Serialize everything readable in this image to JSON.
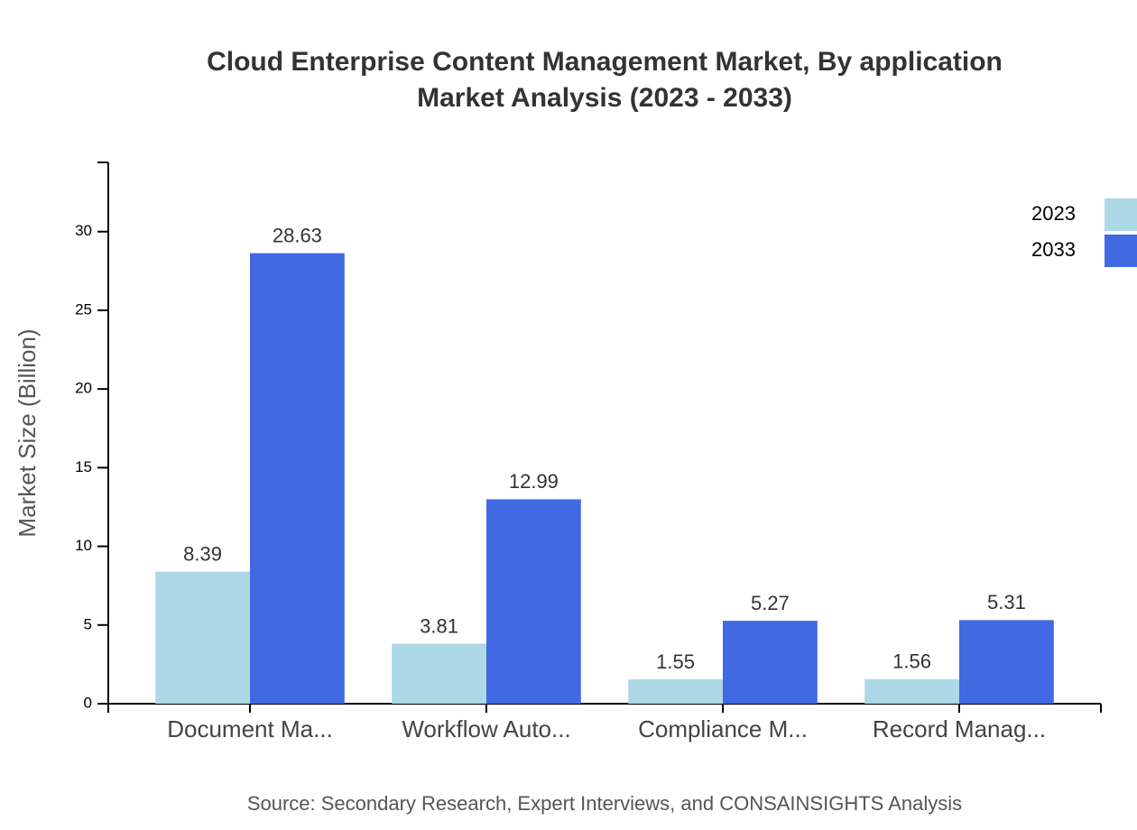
{
  "chart_data": {
    "type": "bar",
    "title": "Cloud Enterprise Content Management Market, By application",
    "subtitle": "Market Analysis (2023 - 2033)",
    "y_label": "Market Size (Billion)",
    "source": "Source: Secondary Research, Expert Interviews, and CONSAINSIGHTS Analysis",
    "categories": [
      "Document Ma...",
      "Workflow Auto...",
      "Compliance M...",
      "Record Manag..."
    ],
    "series": [
      {
        "name": "2023",
        "color": "#add8e6",
        "values": [
          8.39,
          3.81,
          1.55,
          1.56
        ]
      },
      {
        "name": "2033",
        "color": "#4169e1",
        "values": [
          28.63,
          12.99,
          5.27,
          5.31
        ]
      }
    ],
    "ylim": [
      0,
      34.4
    ],
    "yticks": [
      0,
      5,
      10,
      15,
      20,
      25,
      30
    ],
    "legend": "top-right"
  }
}
